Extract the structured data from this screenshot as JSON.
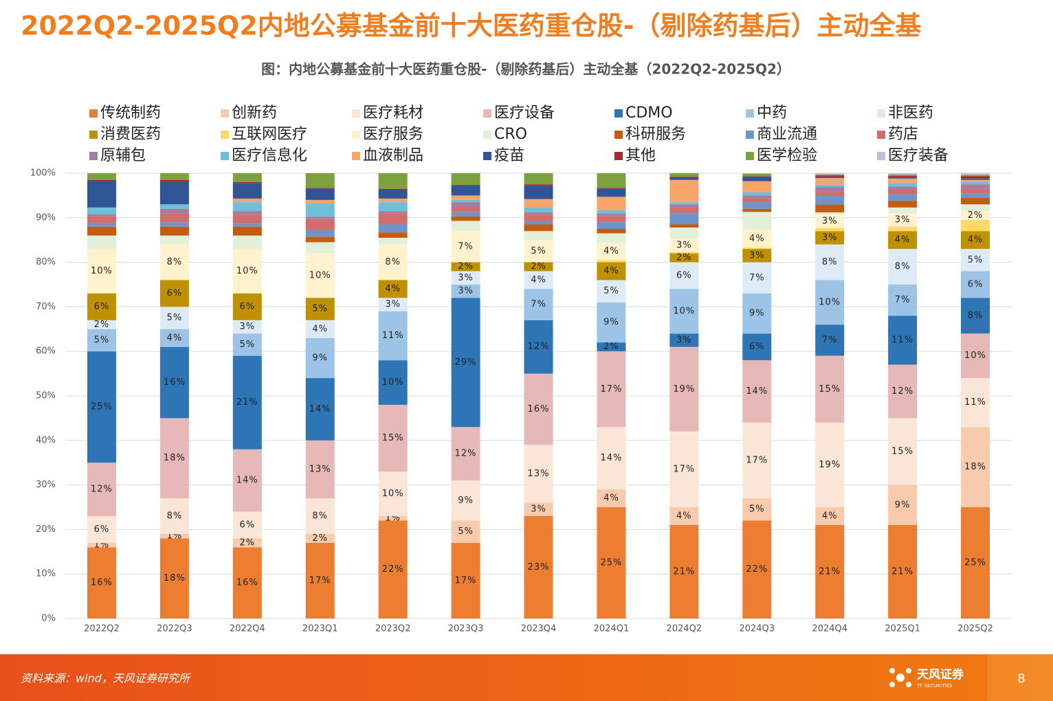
{
  "page": {
    "title": "2022Q2-2025Q2内地公募基金前十大医药重仓股-（剔除药基后）主动全基",
    "source": "资料来源：wind，天风证券研究所",
    "logo": "天风证券",
    "logo_en": "TF SECURITIES",
    "page_number": "8"
  },
  "chart_data": {
    "type": "stacked_bar",
    "title": "图：内地公募基金前十大医药重仓股-（剔除药基后）主动全基（2022Q2-2025Q2）",
    "categories": [
      "2022Q2",
      "2022Q3",
      "2022Q4",
      "2023Q1",
      "2023Q2",
      "2023Q3",
      "2023Q4",
      "2024Q1",
      "2024Q2",
      "2024Q3",
      "2024Q4",
      "2025Q1",
      "2025Q2"
    ],
    "ylim": [
      0,
      100
    ],
    "yticks": [
      {
        "value": 0,
        "label": "0%"
      },
      {
        "value": 10,
        "label": "10%"
      },
      {
        "value": 20,
        "label": "20%"
      },
      {
        "value": 30,
        "label": "30%"
      },
      {
        "value": 40,
        "label": "40%"
      },
      {
        "value": 50,
        "label": "50%"
      },
      {
        "value": 60,
        "label": "60%"
      },
      {
        "value": 70,
        "label": "70%"
      },
      {
        "value": 80,
        "label": "80%"
      },
      {
        "value": 90,
        "label": "90%"
      },
      {
        "value": 100,
        "label": "100%"
      }
    ],
    "grid": true,
    "series": [
      {
        "name": "传统制药",
        "color": "#ED7D31",
        "values": [
          16,
          18,
          16,
          17,
          22,
          17,
          23,
          25,
          21,
          22,
          21,
          21,
          25
        ],
        "value_labels": [
          "16%",
          "18%",
          "16%",
          "17%",
          "22%",
          "17%",
          "23%",
          "25%",
          "21%",
          "22%",
          "21%",
          "21%",
          "25%"
        ]
      },
      {
        "name": "创新药",
        "color": "#F8CBAD",
        "values": [
          1,
          1,
          2,
          2,
          1,
          5,
          3,
          4,
          4,
          5,
          4,
          9,
          18
        ],
        "value_labels": [
          "1%",
          "1%",
          "2%",
          "2%",
          "1%",
          "5%",
          "3%",
          "4%",
          "4%",
          "5%",
          "4%",
          "9%",
          "18%"
        ]
      },
      {
        "name": "医疗耗材",
        "color": "#FBE5D6",
        "values": [
          6,
          8,
          6,
          8,
          10,
          9,
          13,
          14,
          17,
          17,
          19,
          15,
          11
        ],
        "value_labels": [
          "6%",
          "8%",
          "6%",
          "8%",
          "10%",
          "9%",
          "13%",
          "14%",
          "17%",
          "17%",
          "19%",
          "15%",
          "11%"
        ]
      },
      {
        "name": "医疗设备",
        "color": "#E6B8B7",
        "values": [
          12,
          18,
          14,
          13,
          15,
          12,
          16,
          17,
          19,
          14,
          15,
          12,
          10
        ],
        "value_labels": [
          "12%",
          "18%",
          "14%",
          "13%",
          "15%",
          "12%",
          "16%",
          "17%",
          "19%",
          "14%",
          "15%",
          "12%",
          "10%"
        ]
      },
      {
        "name": "CDMO",
        "color": "#2E75B6",
        "values": [
          25,
          16,
          21,
          14,
          10,
          29,
          12,
          2,
          3,
          6,
          7,
          11,
          8
        ],
        "value_labels": [
          "25%",
          "16%",
          "21%",
          "14%",
          "10%",
          "29%",
          "12%",
          "2%",
          "3%",
          "6%",
          "7%",
          "11%",
          "8%"
        ]
      },
      {
        "name": "中药",
        "color": "#9DC3E6",
        "values": [
          5,
          4,
          5,
          9,
          11,
          3,
          7,
          9,
          10,
          9,
          10,
          7,
          6
        ],
        "value_labels": [
          "5%",
          "4%",
          "5%",
          "9%",
          "11%",
          "3%",
          "7%",
          "9%",
          "10%",
          "9%",
          "10%",
          "7%",
          "6%"
        ]
      },
      {
        "name": "非医药",
        "color": "#DEEBF7",
        "values": [
          2,
          5,
          3,
          4,
          3,
          3,
          4,
          5,
          6,
          7,
          8,
          8,
          5
        ],
        "value_labels": [
          "2%",
          "5%",
          "3%",
          "4%",
          "3%",
          "3%",
          "4%",
          "5%",
          "6%",
          "7%",
          "8%",
          "8%",
          "5%"
        ]
      },
      {
        "name": "消费医药",
        "color": "#BF9000",
        "values": [
          6,
          6,
          6,
          5,
          4,
          2,
          2,
          4,
          2,
          3,
          3,
          4,
          4
        ],
        "value_labels": [
          "6%",
          "6%",
          "6%",
          "5%",
          "4%",
          "2%",
          "2%",
          "4%",
          "2%",
          "3%",
          "3%",
          "4%",
          "4%"
        ]
      },
      {
        "name": "互联网医疗",
        "color": "#FFD966",
        "values": [
          0,
          0,
          0,
          0,
          0,
          0,
          0,
          0.5,
          0.3,
          0.3,
          0.7,
          1,
          2.5
        ]
      },
      {
        "name": "医疗服务",
        "color": "#FFF2CC",
        "values": [
          10,
          8,
          10,
          10,
          8,
          7,
          5,
          4,
          3,
          4,
          3,
          3,
          2
        ],
        "value_labels": [
          "10%",
          "8%",
          "10%",
          "10%",
          "8%",
          "7%",
          "5%",
          "4%",
          "3%",
          "4%",
          "3%",
          "3%",
          "2%"
        ]
      },
      {
        "name": "CRO",
        "color": "#E2F0D9",
        "values": [
          3,
          2,
          3,
          2.5,
          1.5,
          2.3,
          2,
          2,
          2.5,
          4,
          0.5,
          1.3,
          1.5
        ]
      },
      {
        "name": "科研服务",
        "color": "#C55A11",
        "values": [
          2,
          2,
          2,
          1.2,
          1.2,
          1,
          1.5,
          1,
          0.7,
          0.7,
          1.7,
          1.5,
          1.5
        ]
      },
      {
        "name": "商业流通",
        "color": "#6F94C9",
        "values": [
          0.8,
          1,
          0.7,
          1.5,
          1.8,
          1,
          0.7,
          1.5,
          2.5,
          1.5,
          2,
          1.5,
          1
        ]
      },
      {
        "name": "药店",
        "color": "#D06E6E",
        "values": [
          1.5,
          2,
          2,
          2.5,
          2.5,
          1.2,
          1.5,
          1.3,
          1.3,
          0.8,
          1,
          1,
          1
        ]
      },
      {
        "name": "原辅包",
        "color": "#A87CA0",
        "values": [
          0.5,
          1,
          0.8,
          0.5,
          0.5,
          1,
          0.5,
          0.7,
          0.7,
          0.7,
          1,
          0.7,
          1
        ]
      },
      {
        "name": "医疗信息化",
        "color": "#6CC0D8",
        "values": [
          1.5,
          1,
          2,
          3,
          2,
          0.5,
          1,
          0.7,
          0.5,
          0.7,
          0.5,
          0.8,
          0.5
        ]
      },
      {
        "name": "血液制品",
        "color": "#F6A46A",
        "values": [
          0,
          0,
          0.8,
          0.8,
          0.8,
          1,
          2,
          3,
          5,
          2.5,
          1.5,
          1,
          0.5
        ]
      },
      {
        "name": "疫苗",
        "color": "#2F5597",
        "values": [
          6,
          5,
          3.5,
          2.5,
          2,
          2.2,
          3,
          1.8,
          0.5,
          1,
          0.3,
          0.3,
          0.3
        ]
      },
      {
        "name": "其他",
        "color": "#A5282A",
        "values": [
          0.2,
          0.5,
          0.2,
          0.2,
          0.2,
          0.2,
          0.3,
          0.2,
          0.2,
          0.1,
          0.3,
          0.3,
          0.5
        ]
      },
      {
        "name": "医学检验",
        "color": "#7BA23F",
        "values": [
          1.5,
          1.5,
          2,
          3.3,
          3.5,
          2.6,
          2.5,
          3.3,
          0.8,
          0.6,
          0.2,
          0.3,
          0.3
        ]
      },
      {
        "name": "医疗装备",
        "color": "#C9B8D9",
        "values": [
          0,
          0,
          0,
          0,
          0,
          0,
          0,
          0,
          0,
          0,
          0.3,
          0.3,
          0.4
        ]
      }
    ]
  }
}
